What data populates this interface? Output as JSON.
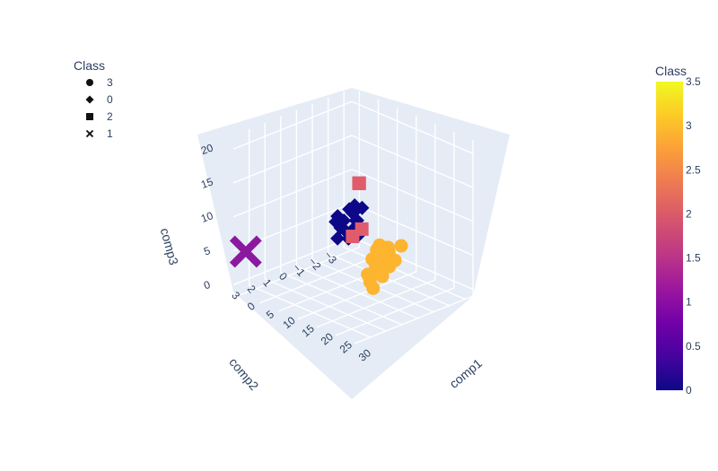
{
  "chart_data": {
    "type": "scatter3d",
    "axes": {
      "x": {
        "label": "comp1",
        "range": [
          -2,
          30
        ],
        "ticks": [
          0,
          5,
          10,
          15,
          20,
          25,
          30
        ]
      },
      "y": {
        "label": "comp2",
        "range": [
          -3.5,
          4
        ],
        "ticks": [
          -3,
          -2,
          -1,
          0,
          1,
          2,
          3
        ]
      },
      "z": {
        "label": "comp3",
        "range": [
          -1,
          22
        ],
        "ticks": [
          0,
          5,
          10,
          15,
          20
        ]
      }
    },
    "legend": {
      "title": "Class",
      "position": "top-left",
      "items": [
        {
          "label": "3",
          "symbol": "circle"
        },
        {
          "label": "0",
          "symbol": "diamond"
        },
        {
          "label": "2",
          "symbol": "square"
        },
        {
          "label": "1",
          "symbol": "x"
        }
      ]
    },
    "colorbar": {
      "title": "Class",
      "min": 0,
      "max": 3.5,
      "ticks": [
        "0",
        "0.5",
        "1",
        "1.5",
        "2",
        "2.5",
        "3",
        "3.5"
      ],
      "colorscale": [
        "#0d0887",
        "#46039f",
        "#7201a8",
        "#9c179e",
        "#bd3786",
        "#d8576b",
        "#ed7953",
        "#fb9f3a",
        "#fdca26",
        "#f0f921"
      ]
    },
    "series": [
      {
        "name": "3",
        "symbol": "circle",
        "color": "#fdb42f",
        "points": [
          [
            11.6,
            -2,
            3.5
          ],
          [
            13,
            -2.2,
            3.3
          ],
          [
            12.5,
            -1.6,
            3.4
          ],
          [
            14,
            -2,
            3.1
          ],
          [
            15,
            -1.8,
            3
          ],
          [
            13.8,
            -1,
            2.9
          ],
          [
            15.5,
            -1.3,
            2.8
          ],
          [
            16,
            -0.7,
            2.7
          ],
          [
            14.8,
            -2.6,
            3.6
          ],
          [
            16.5,
            -1.8,
            2.6
          ],
          [
            17.5,
            -1.2,
            2.5
          ],
          [
            16.8,
            0,
            2.3
          ],
          [
            17.5,
            -0.5,
            2.2
          ],
          [
            18.5,
            -0.5,
            2.5
          ],
          [
            19.5,
            0.5,
            2.3
          ],
          [
            24,
            0.8,
            4.5
          ],
          [
            24.5,
            1.5,
            3.5
          ]
        ]
      },
      {
        "name": "0",
        "symbol": "diamond",
        "color": "#0d0887",
        "points": [
          [
            0.5,
            -2,
            5.1
          ],
          [
            1.5,
            -2.5,
            5.9
          ],
          [
            2.5,
            -2.6,
            6.6
          ],
          [
            3,
            -2.3,
            6.4
          ],
          [
            2.8,
            -1.5,
            6
          ],
          [
            3.8,
            -2.2,
            6.2
          ],
          [
            4.5,
            -2,
            6.5
          ],
          [
            4.2,
            -1,
            6.1
          ],
          [
            5.3,
            -2.4,
            7.1
          ],
          [
            5.5,
            -1.2,
            6.4
          ],
          [
            6.5,
            -1.8,
            6.1
          ],
          [
            6.3,
            -0.8,
            5.9
          ],
          [
            7.4,
            -0.8,
            5.8
          ],
          [
            7,
            -1.6,
            6.4
          ],
          [
            8,
            -0.2,
            5.3
          ],
          [
            8.3,
            -1.2,
            6
          ],
          [
            9.2,
            -0.6,
            5.2
          ],
          [
            10,
            -1,
            5.4
          ]
        ]
      },
      {
        "name": "2",
        "symbol": "square",
        "color": "#e05c6d",
        "points": [
          [
            21.5,
            1.5,
            11.5
          ],
          [
            22,
            2.2,
            11.2
          ],
          [
            25,
            2.5,
            20
          ],
          [
            27,
            3,
            21
          ]
        ]
      },
      {
        "name": "1",
        "symbol": "x",
        "color": "#8b19a0",
        "points": [
          [
            -0.4,
            3.6,
            4.9
          ]
        ]
      }
    ]
  }
}
